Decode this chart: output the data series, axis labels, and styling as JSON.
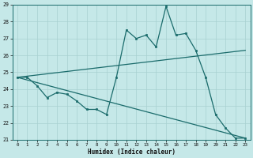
{
  "title": "",
  "xlabel": "Humidex (Indice chaleur)",
  "bg_color": "#c5e8e8",
  "line_color": "#1a6b6b",
  "grid_color": "#a8d0d0",
  "xlim": [
    -0.5,
    23.5
  ],
  "ylim": [
    21,
    29
  ],
  "xticks": [
    0,
    1,
    2,
    3,
    4,
    5,
    6,
    7,
    8,
    9,
    10,
    11,
    12,
    13,
    14,
    15,
    16,
    17,
    18,
    19,
    20,
    21,
    22,
    23
  ],
  "yticks": [
    21,
    22,
    23,
    24,
    25,
    26,
    27,
    28,
    29
  ],
  "line1_x": [
    0,
    1,
    2,
    3,
    4,
    5,
    6,
    7,
    8,
    9,
    10,
    11,
    12,
    13,
    14,
    15,
    16,
    17,
    18,
    19,
    20,
    21,
    22,
    23
  ],
  "line1_y": [
    24.7,
    24.7,
    24.2,
    23.5,
    23.8,
    23.7,
    23.3,
    22.8,
    22.8,
    22.5,
    24.7,
    27.5,
    27.0,
    27.2,
    26.5,
    28.9,
    27.2,
    27.3,
    26.3,
    24.7,
    22.5,
    21.7,
    21.1,
    21.1
  ],
  "line2_x": [
    0,
    23
  ],
  "line2_y": [
    24.7,
    26.3
  ],
  "line3_x": [
    0,
    23
  ],
  "line3_y": [
    24.7,
    21.1
  ]
}
